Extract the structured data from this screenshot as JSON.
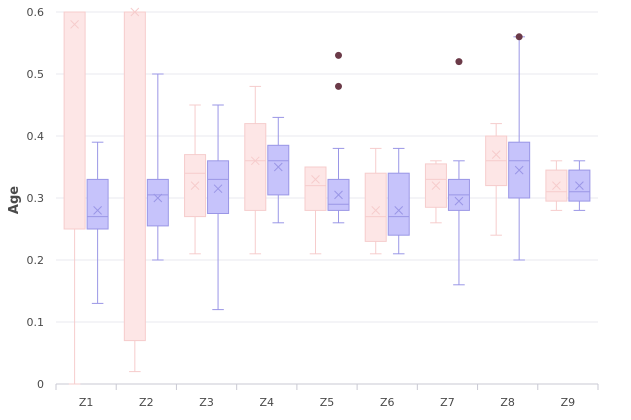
{
  "chart_data": {
    "type": "boxplot",
    "title": "",
    "xlabel": "",
    "ylabel": "Age",
    "ylim": [
      0,
      0.6
    ],
    "yticks": [
      0,
      0.1,
      0.2,
      0.3,
      0.4,
      0.5,
      0.6
    ],
    "ytick_labels": [
      "0",
      "0.1",
      "0.2",
      "0.3",
      "0.4",
      "0.5",
      "0.6"
    ],
    "grid": true,
    "legend": "none",
    "categories": [
      "Z1",
      "Z2",
      "Z3",
      "Z4",
      "Z5",
      "Z6",
      "Z7",
      "Z8",
      "Z9"
    ],
    "series": [
      {
        "color": "#fde6e6",
        "edge": "#f6cccc",
        "boxes": [
          {
            "min": 0.0,
            "q1": 0.25,
            "median": 0.6,
            "q3": 0.6,
            "max": 0.6,
            "mean": 0.58,
            "outliers": []
          },
          {
            "min": 0.02,
            "q1": 0.07,
            "median": 0.6,
            "q3": 0.6,
            "max": 0.6,
            "mean": 0.6,
            "outliers": []
          },
          {
            "min": 0.21,
            "q1": 0.27,
            "median": 0.34,
            "q3": 0.37,
            "max": 0.45,
            "mean": 0.32,
            "outliers": []
          },
          {
            "min": 0.21,
            "q1": 0.28,
            "median": 0.36,
            "q3": 0.42,
            "max": 0.48,
            "mean": 0.36,
            "outliers": []
          },
          {
            "min": 0.21,
            "q1": 0.28,
            "median": 0.32,
            "q3": 0.35,
            "max": 0.35,
            "mean": 0.33,
            "outliers": []
          },
          {
            "min": 0.21,
            "q1": 0.23,
            "median": 0.27,
            "q3": 0.34,
            "max": 0.38,
            "mean": 0.28,
            "outliers": []
          },
          {
            "min": 0.26,
            "q1": 0.285,
            "median": 0.33,
            "q3": 0.355,
            "max": 0.36,
            "mean": 0.32,
            "outliers": []
          },
          {
            "min": 0.24,
            "q1": 0.32,
            "median": 0.36,
            "q3": 0.4,
            "max": 0.42,
            "mean": 0.37,
            "outliers": []
          },
          {
            "min": 0.28,
            "q1": 0.295,
            "median": 0.31,
            "q3": 0.345,
            "max": 0.36,
            "mean": 0.32,
            "outliers": []
          }
        ]
      },
      {
        "color": "#c6c3fb",
        "edge": "#9a96e6",
        "boxes": [
          {
            "min": 0.13,
            "q1": 0.25,
            "median": 0.27,
            "q3": 0.33,
            "max": 0.39,
            "mean": 0.28,
            "outliers": []
          },
          {
            "min": 0.2,
            "q1": 0.255,
            "median": 0.305,
            "q3": 0.33,
            "max": 0.5,
            "mean": 0.3,
            "outliers": []
          },
          {
            "min": 0.12,
            "q1": 0.275,
            "median": 0.33,
            "q3": 0.36,
            "max": 0.45,
            "mean": 0.315,
            "outliers": []
          },
          {
            "min": 0.26,
            "q1": 0.305,
            "median": 0.36,
            "q3": 0.385,
            "max": 0.43,
            "mean": 0.35,
            "outliers": []
          },
          {
            "min": 0.26,
            "q1": 0.28,
            "median": 0.29,
            "q3": 0.33,
            "max": 0.38,
            "mean": 0.305,
            "outliers": [
              0.53,
              0.48
            ]
          },
          {
            "min": 0.21,
            "q1": 0.24,
            "median": 0.27,
            "q3": 0.34,
            "max": 0.38,
            "mean": 0.28,
            "outliers": []
          },
          {
            "min": 0.16,
            "q1": 0.28,
            "median": 0.305,
            "q3": 0.33,
            "max": 0.36,
            "mean": 0.295,
            "outliers": [
              0.52
            ]
          },
          {
            "min": 0.2,
            "q1": 0.3,
            "median": 0.36,
            "q3": 0.39,
            "max": 0.56,
            "mean": 0.345,
            "outliers": [
              0.56
            ]
          },
          {
            "min": 0.28,
            "q1": 0.295,
            "median": 0.31,
            "q3": 0.345,
            "max": 0.36,
            "mean": 0.32,
            "outliers": []
          }
        ]
      }
    ],
    "outlier_color": "#6b3a48"
  }
}
